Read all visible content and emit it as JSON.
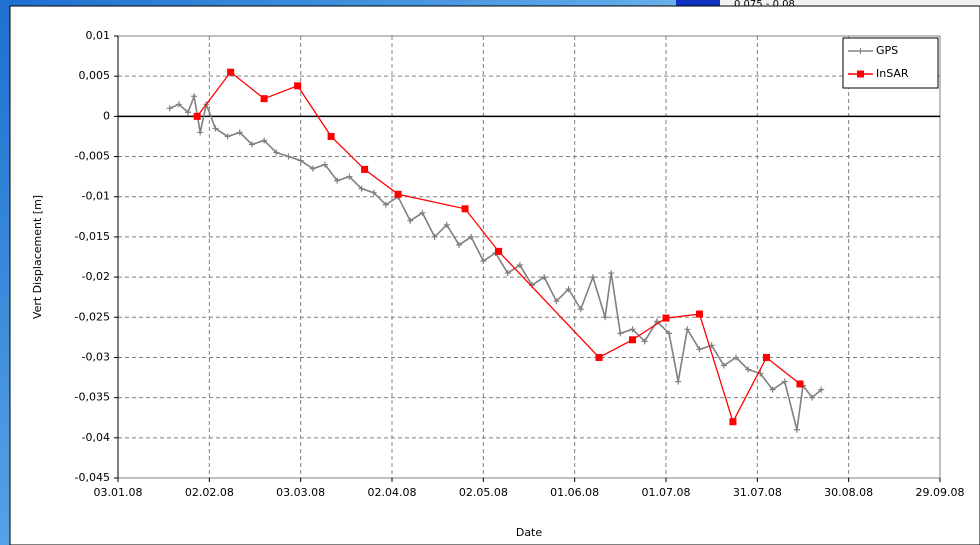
{
  "background_legend_label": "0,075 - 0,08",
  "chart_data": {
    "type": "line",
    "y_label": "Vert Displacement [m]",
    "x_label": "Date",
    "xlim": [
      "2008-01-03",
      "2008-09-29"
    ],
    "xticks": [
      {
        "value": "2008-01-03",
        "label": "03.01.08"
      },
      {
        "value": "2008-02-02",
        "label": "02.02.08"
      },
      {
        "value": "2008-03-03",
        "label": "03.03.08"
      },
      {
        "value": "2008-04-02",
        "label": "02.04.08"
      },
      {
        "value": "2008-05-02",
        "label": "02.05.08"
      },
      {
        "value": "2008-06-01",
        "label": "01.06.08"
      },
      {
        "value": "2008-07-01",
        "label": "01.07.08"
      },
      {
        "value": "2008-07-31",
        "label": "31.07.08"
      },
      {
        "value": "2008-08-30",
        "label": "30.08.08"
      },
      {
        "value": "2008-09-29",
        "label": "29.09.08"
      }
    ],
    "ylim": [
      -0.045,
      0.01
    ],
    "yticks": [
      {
        "value": 0.01,
        "label": "0,01"
      },
      {
        "value": 0.005,
        "label": "0,005"
      },
      0,
      {
        "value": -0.005,
        "label": "-0,005"
      },
      {
        "value": -0.01,
        "label": "-0,01"
      },
      {
        "value": -0.015,
        "label": "-0,015"
      },
      {
        "value": -0.02,
        "label": "-0,02"
      },
      {
        "value": -0.025,
        "label": "-0,025"
      },
      {
        "value": -0.03,
        "label": "-0,03"
      },
      {
        "value": -0.035,
        "label": "-0,035"
      },
      {
        "value": -0.04,
        "label": "-0,04"
      },
      {
        "value": -0.045,
        "label": "-0,045"
      }
    ],
    "grid": true,
    "legend": "upper right",
    "series": [
      {
        "name": "GPS",
        "color": "#808080",
        "x": [
          "2008-01-20",
          "2008-01-23",
          "2008-01-26",
          "2008-01-28",
          "2008-01-30",
          "2008-02-01",
          "2008-02-04",
          "2008-02-08",
          "2008-02-12",
          "2008-02-16",
          "2008-02-20",
          "2008-02-24",
          "2008-02-28",
          "2008-03-03",
          "2008-03-07",
          "2008-03-11",
          "2008-03-15",
          "2008-03-19",
          "2008-03-23",
          "2008-03-27",
          "2008-03-31",
          "2008-04-04",
          "2008-04-08",
          "2008-04-12",
          "2008-04-16",
          "2008-04-20",
          "2008-04-24",
          "2008-04-28",
          "2008-05-02",
          "2008-05-06",
          "2008-05-10",
          "2008-05-14",
          "2008-05-18",
          "2008-05-22",
          "2008-05-26",
          "2008-05-30",
          "2008-06-03",
          "2008-06-07",
          "2008-06-11",
          "2008-06-13",
          "2008-06-16",
          "2008-06-20",
          "2008-06-24",
          "2008-06-28",
          "2008-07-02",
          "2008-07-05",
          "2008-07-08",
          "2008-07-12",
          "2008-07-16",
          "2008-07-20",
          "2008-07-24",
          "2008-07-28",
          "2008-08-01",
          "2008-08-05",
          "2008-08-09",
          "2008-08-13",
          "2008-08-15",
          "2008-08-18",
          "2008-08-21"
        ],
        "values": [
          0.001,
          0.0015,
          0.0005,
          0.0025,
          -0.002,
          0.0015,
          -0.0015,
          -0.0025,
          -0.002,
          -0.0035,
          -0.003,
          -0.0045,
          -0.005,
          -0.0055,
          -0.0065,
          -0.006,
          -0.008,
          -0.0075,
          -0.009,
          -0.0095,
          -0.011,
          -0.01,
          -0.013,
          -0.012,
          -0.015,
          -0.0135,
          -0.016,
          -0.015,
          -0.018,
          -0.017,
          -0.0195,
          -0.0185,
          -0.021,
          -0.02,
          -0.023,
          -0.0215,
          -0.024,
          -0.02,
          -0.025,
          -0.0195,
          -0.027,
          -0.0265,
          -0.028,
          -0.0255,
          -0.027,
          -0.033,
          -0.0265,
          -0.029,
          -0.0285,
          -0.031,
          -0.03,
          -0.0315,
          -0.032,
          -0.034,
          -0.033,
          -0.039,
          -0.0335,
          -0.035,
          -0.034
        ]
      },
      {
        "name": "InSAR",
        "color": "#ff0000",
        "x": [
          "2008-01-29",
          "2008-02-09",
          "2008-02-20",
          "2008-03-02",
          "2008-03-13",
          "2008-03-24",
          "2008-04-04",
          "2008-04-26",
          "2008-05-07",
          "2008-06-09",
          "2008-06-20",
          "2008-07-01",
          "2008-07-12",
          "2008-07-23",
          "2008-08-03",
          "2008-08-14"
        ],
        "values": [
          0,
          0.0055,
          0.0022,
          0.0038,
          -0.0025,
          -0.0066,
          -0.0097,
          -0.0115,
          -0.0168,
          -0.03,
          -0.0278,
          -0.0251,
          -0.0246,
          -0.038,
          -0.03,
          -0.0333
        ]
      }
    ]
  }
}
